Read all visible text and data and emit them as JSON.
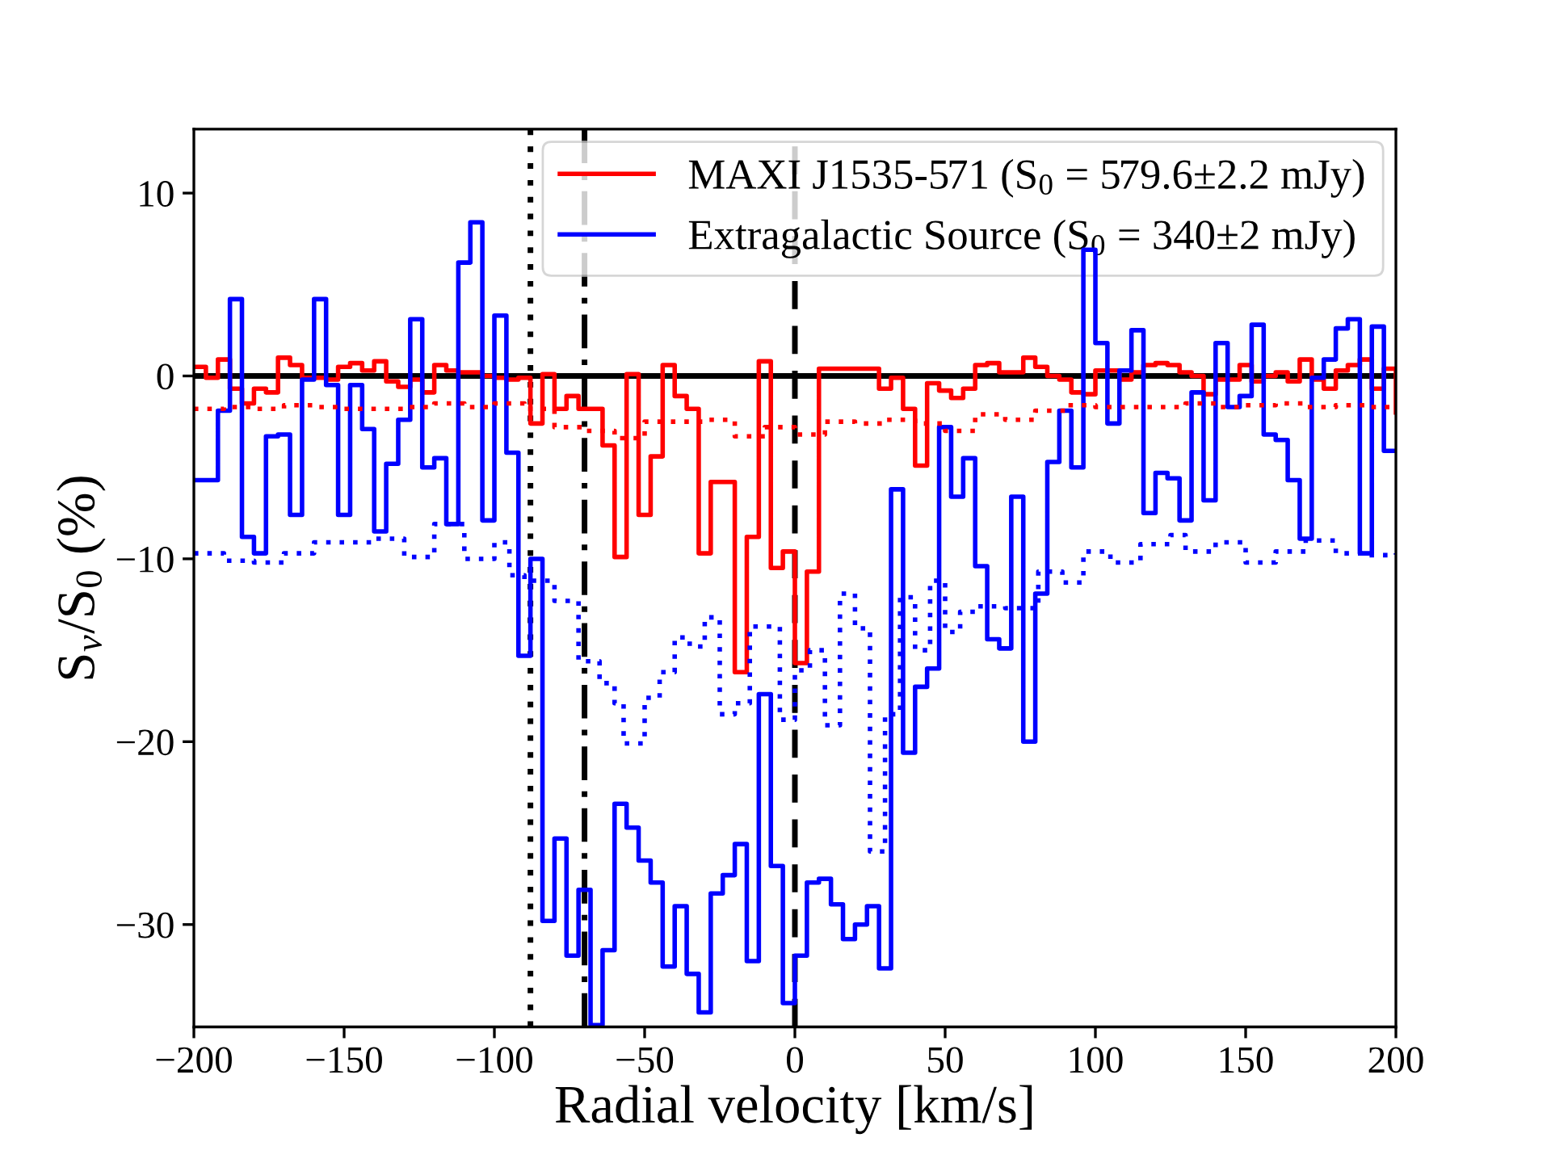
{
  "chart_data": {
    "type": "step",
    "xlabel": "Radial velocity [km/s]",
    "ylabel": "S$_{ν}$/S$_{0}$ (%)",
    "xlim": [
      -200,
      200
    ],
    "ylim": [
      -35.6,
      13.5
    ],
    "xticks": [
      {
        "value": -200,
        "label": "−200"
      },
      {
        "value": -150,
        "label": "−150"
      },
      {
        "value": -100,
        "label": "−100"
      },
      {
        "value": -50,
        "label": "−50"
      },
      0,
      50,
      100,
      150,
      200
    ],
    "yticks": [
      {
        "value": -30,
        "label": "−30"
      },
      {
        "value": -20,
        "label": "−20"
      },
      {
        "value": -10,
        "label": "−10"
      },
      0,
      10
    ],
    "grid": false,
    "legend": "top right",
    "series": [
      {
        "name": "MAXI J1535-571 (S$_{0}$ = 579.6±2.2 mJy)",
        "color": "#ff0000",
        "line_style": "solid",
        "x": [
          -200,
          -196,
          -192,
          -188,
          -184,
          -180,
          -176,
          -172,
          -168,
          -164,
          -160,
          -156,
          -152,
          -148,
          -144,
          -140,
          -136,
          -132,
          -128,
          -124,
          -120,
          -116,
          -112,
          -108,
          -104,
          -100,
          -96,
          -92,
          -88,
          -84,
          -80,
          -76,
          -72,
          -68,
          -64,
          -60,
          -56,
          -52,
          -48,
          -44,
          -40,
          -36,
          -32,
          -28,
          -24,
          -20,
          -16,
          -12,
          -8,
          -4,
          0,
          4,
          8,
          12,
          16,
          20,
          24,
          28,
          32,
          36,
          40,
          44,
          48,
          52,
          56,
          60,
          64,
          68,
          72,
          76,
          80,
          84,
          88,
          92,
          96,
          100,
          104,
          108,
          112,
          116,
          120,
          124,
          128,
          132,
          136,
          140,
          144,
          148,
          152,
          156,
          160,
          164,
          168,
          172,
          176,
          180,
          184,
          188,
          192,
          196,
          200
        ],
        "values": [
          0.5,
          -0.1,
          0.9,
          -0.7,
          -1.5,
          -0.7,
          -0.9,
          1.0,
          0.6,
          -0.1,
          -0.1,
          -0.2,
          0.5,
          0.7,
          0.3,
          0.8,
          -0.3,
          -0.6,
          -0.2,
          -0.9,
          0.6,
          0.3,
          0.2,
          0.2,
          0,
          -0.1,
          -0.2,
          -0.1,
          -2.6,
          0.1,
          -1.8,
          -1.1,
          -1.8,
          -1.8,
          -3.8,
          -9.9,
          0.1,
          -7.6,
          -4.4,
          0.6,
          -1.1,
          -1.8,
          -9.7,
          -5.8,
          -5.8,
          -16.2,
          -8.8,
          0.8,
          -10.5,
          -9.6,
          -15.7,
          -10.7,
          0.4,
          0.4,
          0.4,
          0.4,
          0.4,
          -0.7,
          -0.1,
          -1.8,
          -4.9,
          -0.4,
          -0.8,
          -1.2,
          -0.7,
          0.6,
          0.7,
          0.2,
          0.2,
          1.0,
          0.5,
          0,
          -0.2,
          -0.9,
          -1.0,
          0.3,
          0.3,
          -0.2,
          0.2,
          0.6,
          0.7,
          0.6,
          0.2,
          0,
          -1.0,
          -0.2,
          -0.2,
          0.6,
          -0.3,
          0,
          0.2,
          -0.3,
          0.9,
          -0.2,
          -0.7,
          0.3,
          0.6,
          0.9,
          -0.7,
          0.4,
          -2.0
        ]
      },
      {
        "name": "Extragalactic Source (S$_{0}$ = 340±2 mJy)",
        "color": "#0000ff",
        "line_style": "solid",
        "x": [
          -200,
          -196,
          -192,
          -188,
          -184,
          -180,
          -176,
          -172,
          -168,
          -164,
          -160,
          -156,
          -152,
          -148,
          -144,
          -140,
          -136,
          -132,
          -128,
          -124,
          -120,
          -116,
          -112,
          -108,
          -104,
          -100,
          -96,
          -92,
          -88,
          -84,
          -80,
          -76,
          -72,
          -68,
          -64,
          -60,
          -56,
          -52,
          -48,
          -44,
          -40,
          -36,
          -32,
          -28,
          -24,
          -20,
          -16,
          -12,
          -8,
          -4,
          0,
          4,
          8,
          12,
          16,
          20,
          24,
          28,
          32,
          36,
          40,
          44,
          48,
          52,
          56,
          60,
          64,
          68,
          72,
          76,
          80,
          84,
          88,
          92,
          96,
          100,
          104,
          108,
          112,
          116,
          120,
          124,
          128,
          132,
          136,
          140,
          144,
          148,
          152,
          156,
          160,
          164,
          168,
          172,
          176,
          180,
          184,
          188,
          192,
          196,
          200
        ],
        "values": [
          -5.7,
          -5.7,
          -1.9,
          4.2,
          -8.8,
          -9.7,
          -3.3,
          -3.2,
          -7.6,
          -0.2,
          4.2,
          -0.5,
          -7.6,
          -0.5,
          -2.9,
          -8.5,
          -4.8,
          -2.4,
          3.1,
          -5.0,
          -4.5,
          -8.1,
          6.2,
          8.4,
          -7.9,
          3.3,
          -4.2,
          -15.3,
          -10.0,
          -29.8,
          -25.3,
          -31.7,
          -28.1,
          -35.5,
          -31.4,
          -23.4,
          -24.7,
          -26.5,
          -27.7,
          -32.3,
          -29.0,
          -32.7,
          -34.8,
          -28.3,
          -27.3,
          -25.6,
          -32.0,
          -17.4,
          -26.8,
          -34.3,
          -31.7,
          -27.7,
          -27.5,
          -28.9,
          -30.8,
          -30.0,
          -29.0,
          -32.4,
          -6.2,
          -20.6,
          -17.0,
          -16.0,
          -2.8,
          -6.6,
          -4.5,
          -10.4,
          -14.4,
          -14.9,
          -6.6,
          -20.0,
          -11.9,
          -4.7,
          -1.9,
          -5.0,
          6.9,
          1.8,
          -2.6,
          0.3,
          2.5,
          -7.5,
          -5.3,
          -5.6,
          -7.9,
          -0.9,
          -6.8,
          1.8,
          -1.7,
          -1.1,
          2.8,
          -3.2,
          -3.5,
          -5.7,
          -8.9,
          -0.1,
          0.9,
          2.6,
          3.1,
          -9.7,
          2.7,
          -4.1,
          -4.1
        ]
      },
      {
        "color": "#ff0000",
        "line_style": "dotted",
        "x": [
          -200,
          -190,
          -180,
          -170,
          -160,
          -150,
          -140,
          -130,
          -120,
          -110,
          -100,
          -90,
          -80,
          -70,
          -60,
          -50,
          -40,
          -30,
          -20,
          -10,
          0,
          10,
          20,
          30,
          40,
          50,
          60,
          70,
          80,
          90,
          100,
          110,
          120,
          130,
          140,
          150,
          160,
          170,
          180,
          190,
          200
        ],
        "values": [
          -1.8,
          -1.7,
          -1.8,
          -1.6,
          -1.7,
          -1.8,
          -1.8,
          -1.7,
          -1.5,
          -1.7,
          -1.5,
          -1.8,
          -2.8,
          -3.0,
          -3.4,
          -2.5,
          -2.5,
          -2.4,
          -3.3,
          -2.8,
          -3.2,
          -2.5,
          -2.6,
          -2.4,
          -2.6,
          -3.0,
          -2.1,
          -2.4,
          -1.9,
          -1.6,
          -1.7,
          -1.7,
          -1.7,
          -1.5,
          -1.7,
          -1.6,
          -1.5,
          -1.7,
          -1.6,
          -1.7,
          -1.6
        ]
      },
      {
        "color": "#0000ff",
        "line_style": "dotted",
        "x": [
          -200,
          -190,
          -180,
          -170,
          -160,
          -150,
          -140,
          -130,
          -120,
          -110,
          -100,
          -95,
          -90,
          -80,
          -72,
          -65,
          -60,
          -57,
          -50,
          -45,
          -40,
          -35,
          -30,
          -25,
          -20,
          -15,
          -10,
          -5,
          0,
          5,
          10,
          15,
          20,
          25,
          30,
          35,
          40,
          45,
          50,
          55,
          60,
          70,
          81,
          89,
          96,
          105,
          115,
          125,
          130,
          140,
          150,
          160,
          170,
          180,
          190,
          200
        ],
        "values": [
          -9.7,
          -10.1,
          -10.2,
          -9.7,
          -9.1,
          -9.1,
          -8.9,
          -9.9,
          -8.1,
          -10.0,
          -9.1,
          -10.9,
          -11.2,
          -12.3,
          -15.6,
          -16.8,
          -17.9,
          -20.1,
          -17.6,
          -16.2,
          -14.3,
          -14.8,
          -13.2,
          -18.5,
          -17.9,
          -13.7,
          -13.7,
          -18.8,
          -16.1,
          -15.0,
          -19.1,
          -11.9,
          -13.8,
          -26.0,
          -18.5,
          -12.1,
          -15.0,
          -11.2,
          -14.0,
          -12.9,
          -12.6,
          -12.7,
          -10.7,
          -11.3,
          -9.6,
          -10.2,
          -9.2,
          -8.7,
          -9.6,
          -9.1,
          -10.2,
          -9.6,
          -9.0,
          -9.7,
          -9.8,
          -9.7
        ]
      }
    ],
    "ref_lines": [
      {
        "axis": "y",
        "value": 0,
        "color": "#000000",
        "line_style": "solid"
      },
      {
        "axis": "x",
        "value": -88,
        "color": "#000000",
        "line_style": "dotted"
      },
      {
        "axis": "x",
        "value": -70,
        "color": "#000000",
        "line_style": "dashdot"
      },
      {
        "axis": "x",
        "value": 0,
        "color": "#000000",
        "line_style": "dashed"
      }
    ]
  }
}
